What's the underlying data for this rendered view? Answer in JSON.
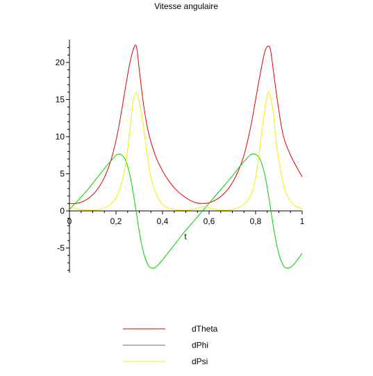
{
  "chart_data": {
    "type": "line",
    "title": "Vitesse angulaire",
    "xlabel": "t",
    "ylabel": "",
    "xlim": [
      0,
      1
    ],
    "ylim": [
      -8.5,
      23
    ],
    "grid": false,
    "legend_position": "bottom",
    "x_ticks": [
      {
        "value": 0,
        "label": "0"
      },
      {
        "value": 0.2,
        "label": "0,2"
      },
      {
        "value": 0.4,
        "label": "0,4"
      },
      {
        "value": 0.6,
        "label": "0,6"
      },
      {
        "value": 0.8,
        "label": "0,8"
      },
      {
        "value": 1,
        "label": "1"
      }
    ],
    "y_ticks": [
      {
        "value": -5,
        "label": "-5"
      },
      {
        "value": 0,
        "label": "0"
      },
      {
        "value": 5,
        "label": "5"
      },
      {
        "value": 10,
        "label": "10"
      },
      {
        "value": 15,
        "label": "15"
      },
      {
        "value": 20,
        "label": "20"
      }
    ],
    "series": [
      {
        "name": "dTheta",
        "color": "#e00000",
        "x": [
          0,
          0.03,
          0.06,
          0.09,
          0.12,
          0.15,
          0.18,
          0.21,
          0.24,
          0.26,
          0.28,
          0.29,
          0.3,
          0.32,
          0.34,
          0.37,
          0.4,
          0.43,
          0.46,
          0.49,
          0.52,
          0.55,
          0.575,
          0.6,
          0.63,
          0.66,
          0.69,
          0.72,
          0.75,
          0.78,
          0.8,
          0.82,
          0.84,
          0.855,
          0.865,
          0.88,
          0.9,
          0.92,
          0.95,
          0.98,
          1.0
        ],
        "y": [
          1.0,
          1.0,
          1.3,
          1.9,
          2.9,
          4.5,
          7.0,
          11.0,
          16.5,
          20.0,
          22.2,
          21.8,
          19.0,
          14.0,
          10.5,
          7.4,
          5.4,
          3.9,
          2.8,
          2.0,
          1.4,
          1.05,
          1.0,
          1.1,
          1.5,
          2.2,
          3.3,
          5.0,
          7.5,
          11.5,
          15.0,
          18.5,
          21.5,
          22.2,
          21.5,
          18.0,
          13.5,
          10.0,
          7.5,
          5.7,
          4.6
        ]
      },
      {
        "name": "dPhi",
        "color": "#00d000",
        "x": [
          0,
          0.03,
          0.06,
          0.09,
          0.12,
          0.15,
          0.18,
          0.2,
          0.22,
          0.24,
          0.26,
          0.28,
          0.3,
          0.32,
          0.34,
          0.355,
          0.37,
          0.4,
          0.43,
          0.46,
          0.49,
          0.52,
          0.55,
          0.58,
          0.61,
          0.64,
          0.67,
          0.7,
          0.73,
          0.76,
          0.78,
          0.8,
          0.82,
          0.84,
          0.86,
          0.88,
          0.9,
          0.92,
          0.935,
          0.95,
          0.97,
          1.0
        ],
        "y": [
          0.2,
          1.2,
          2.2,
          3.3,
          4.5,
          5.7,
          6.8,
          7.5,
          7.6,
          6.9,
          4.8,
          1.3,
          -2.8,
          -5.8,
          -7.4,
          -7.7,
          -7.6,
          -6.6,
          -5.4,
          -4.2,
          -3.0,
          -1.9,
          -0.8,
          0.3,
          1.4,
          2.5,
          3.6,
          4.7,
          5.9,
          7.0,
          7.6,
          7.6,
          6.9,
          4.8,
          1.2,
          -2.8,
          -5.8,
          -7.4,
          -7.7,
          -7.6,
          -7.0,
          -5.7
        ]
      },
      {
        "name": "dPsi",
        "color": "#f0f000",
        "x": [
          0,
          0.03,
          0.06,
          0.09,
          0.12,
          0.15,
          0.18,
          0.21,
          0.24,
          0.26,
          0.275,
          0.29,
          0.31,
          0.33,
          0.35,
          0.38,
          0.41,
          0.45,
          0.5,
          0.55,
          0.58,
          0.61,
          0.64,
          0.67,
          0.7,
          0.73,
          0.76,
          0.79,
          0.81,
          0.83,
          0.85,
          0.86,
          0.875,
          0.89,
          0.91,
          0.93,
          0.96,
          1.0
        ],
        "y": [
          0.6,
          0.3,
          0.15,
          0.1,
          0.15,
          0.4,
          1.0,
          2.4,
          6.0,
          11.0,
          15.0,
          15.8,
          13.0,
          8.5,
          4.5,
          1.8,
          0.6,
          0.2,
          0.1,
          0.35,
          0.6,
          0.3,
          0.15,
          0.1,
          0.2,
          0.5,
          1.2,
          3.0,
          6.5,
          11.5,
          15.5,
          15.8,
          13.5,
          9.0,
          5.0,
          2.5,
          0.9,
          0.3
        ]
      }
    ]
  }
}
